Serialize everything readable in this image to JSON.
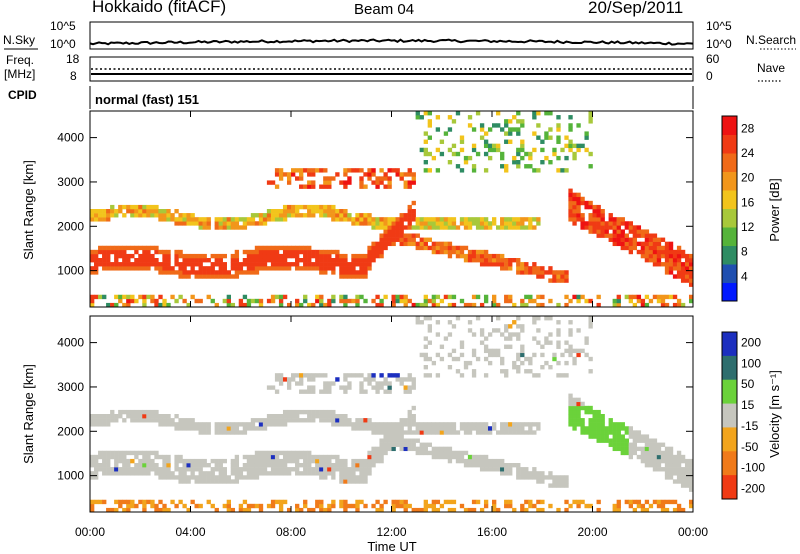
{
  "header": {
    "station": "Hokkaido (fitACF)",
    "beam": "Beam 04",
    "date": "20/Sep/2011"
  },
  "panels": {
    "nsky": {
      "left_label": "N.Sky",
      "ticks": [
        "10^5",
        "10^0"
      ],
      "right_label": "N.Search",
      "right_ticks": [
        "10^5",
        "10^0"
      ]
    },
    "freq": {
      "left_label_line1": "Freq.",
      "left_label_line2": "[MHz]",
      "ticks": [
        "18",
        "8"
      ],
      "right_label": "Nave",
      "right_ticks": [
        "60",
        "0"
      ]
    },
    "cpid": {
      "label": "CPID",
      "text": "normal (fast) 151"
    }
  },
  "colors": {
    "power": [
      "#0019ff",
      "#1f4fb0",
      "#2e8c63",
      "#55b33a",
      "#a8c83a",
      "#f2c41c",
      "#f2961b",
      "#f06a18",
      "#f03a14",
      "#ee1212"
    ],
    "velocity": [
      "#1c2fbf",
      "#2e6e6e",
      "#6bd23a",
      "#c6c6be",
      "#f2a41c",
      "#f07a1a",
      "#f03a14"
    ]
  },
  "chart_data": [
    {
      "type": "heatmap",
      "name_of_quantity": "Power",
      "ylabel": "Slant Range [km]",
      "xlabel": "Time UT",
      "x_ticks": [
        "00:00",
        "04:00",
        "08:00",
        "12:00",
        "16:00",
        "20:00",
        "00:00"
      ],
      "y_ticks": [
        1000,
        2000,
        3000,
        4000
      ],
      "ylim": [
        180,
        4600
      ],
      "colorbar": {
        "label": "Power [dB]",
        "ticks": [
          4,
          8,
          12,
          16,
          20,
          24,
          28
        ],
        "range": [
          0,
          30
        ]
      }
    },
    {
      "type": "heatmap",
      "name_of_quantity": "Velocity",
      "ylabel": "Slant Range [km]",
      "xlabel": "Time UT",
      "x_ticks": [
        "00:00",
        "04:00",
        "08:00",
        "12:00",
        "16:00",
        "20:00",
        "00:00"
      ],
      "y_ticks": [
        1000,
        2000,
        3000,
        4000
      ],
      "ylim": [
        180,
        4600
      ],
      "colorbar": {
        "label": "Velocity [m s⁻¹]",
        "ticks": [
          200,
          100,
          50,
          15,
          -15,
          -50,
          -100,
          -200
        ]
      }
    }
  ]
}
